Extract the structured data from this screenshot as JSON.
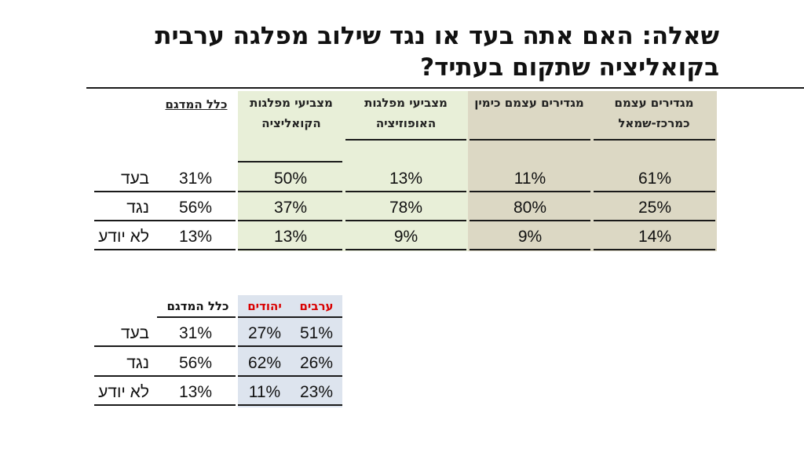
{
  "title": "שאלה: האם אתה בעד או נגד שילוב מפלגה ערבית בקואליציה שתקום בעתיד?",
  "colors": {
    "green_shade": "#e8efd8",
    "tan_shade": "#dcd8c4",
    "blue_shade": "#dde4ee",
    "accent_red": "#d90000",
    "rule": "#1a1a1a"
  },
  "chart_data": [
    {
      "type": "table",
      "row_labels": [
        "בעד",
        "נגד",
        "לא יודע"
      ],
      "columns": [
        {
          "header": "כלל המדגם",
          "values": [
            "31%",
            "56%",
            "13%"
          ],
          "shade": "none"
        },
        {
          "header": "מצביעי מפלגות הקואליציה",
          "values": [
            "50%",
            "37%",
            "13%"
          ],
          "shade": "green"
        },
        {
          "header": "מצביעי מפלגות האופוזיציה",
          "values": [
            "13%",
            "78%",
            "9%"
          ],
          "shade": "green"
        },
        {
          "header": "מגדירים עצמם כימין",
          "values": [
            "11%",
            "80%",
            "9%"
          ],
          "shade": "tan"
        },
        {
          "header": "מגדירים עצמם כמרכז-שמאל",
          "values": [
            "61%",
            "25%",
            "14%"
          ],
          "shade": "tan"
        }
      ]
    },
    {
      "type": "table",
      "row_labels": [
        "בעד",
        "נגד",
        "לא יודע"
      ],
      "columns": [
        {
          "header": "כלל המדגם",
          "values": [
            "31%",
            "56%",
            "13%"
          ],
          "shade": "none"
        },
        {
          "header": "יהודים",
          "values": [
            "27%",
            "62%",
            "11%"
          ],
          "shade": "blue"
        },
        {
          "header": "ערבים",
          "values": [
            "51%",
            "26%",
            "23%"
          ],
          "shade": "blue"
        }
      ]
    }
  ]
}
